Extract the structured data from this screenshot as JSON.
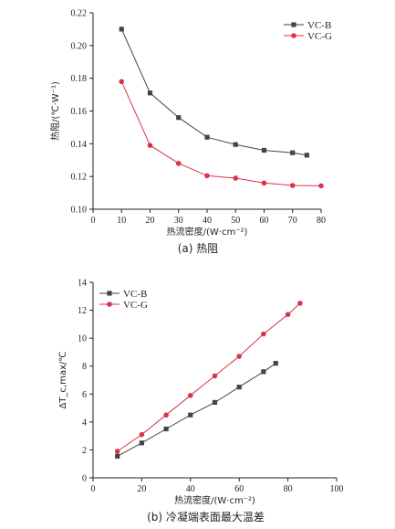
{
  "chart_data": [
    {
      "type": "line",
      "caption": "(a)  热阻",
      "xlabel": "热流密度/(W·cm⁻²)",
      "ylabel": "热阻/(℃·W⁻¹)",
      "xlim": [
        0,
        80
      ],
      "ylim": [
        0.1,
        0.22
      ],
      "xticks": [
        0,
        10,
        20,
        30,
        40,
        50,
        60,
        70,
        80
      ],
      "xtick_labels": [
        "0",
        "10",
        "20",
        "30",
        "40",
        "50",
        "60",
        "70",
        "80"
      ],
      "yticks": [
        0.1,
        0.12,
        0.14,
        0.16,
        0.18,
        0.2,
        0.22
      ],
      "ytick_labels": [
        "0.10",
        "0.12",
        "0.14",
        "0.16",
        "0.18",
        "0.20",
        "0.22"
      ],
      "legend_position": "top-right",
      "grid": false,
      "series": [
        {
          "name": "VC-B",
          "color": "#444444",
          "marker": "square",
          "x": [
            10,
            20,
            30,
            40,
            50,
            60,
            70,
            75
          ],
          "y": [
            0.21,
            0.171,
            0.156,
            0.144,
            0.1395,
            0.136,
            0.1345,
            0.133
          ]
        },
        {
          "name": "VC-G",
          "color": "#d9334a",
          "marker": "circle",
          "x": [
            10,
            20,
            30,
            40,
            50,
            60,
            70,
            80
          ],
          "y": [
            0.178,
            0.139,
            0.128,
            0.1205,
            0.119,
            0.116,
            0.1145,
            0.1143
          ]
        }
      ]
    },
    {
      "type": "line",
      "caption": "(b)  冷凝端表面最大温差",
      "xlabel": "热流密度/(W·cm⁻²)",
      "ylabel": "ΔT_c,max/℃",
      "xlim": [
        0,
        100
      ],
      "ylim": [
        0,
        14
      ],
      "xticks": [
        0,
        20,
        40,
        60,
        80,
        100
      ],
      "xtick_labels": [
        "0",
        "20",
        "40",
        "60",
        "80",
        "100"
      ],
      "yticks": [
        0,
        2,
        4,
        6,
        8,
        10,
        12,
        14
      ],
      "ytick_labels": [
        "0",
        "2",
        "4",
        "6",
        "8",
        "10",
        "12",
        "14"
      ],
      "legend_position": "top-left",
      "grid": false,
      "series": [
        {
          "name": "VC-B",
          "color": "#444444",
          "marker": "square",
          "x": [
            10,
            20,
            30,
            40,
            50,
            60,
            70,
            75
          ],
          "y": [
            1.55,
            2.5,
            3.5,
            4.5,
            5.4,
            6.5,
            7.6,
            8.2
          ]
        },
        {
          "name": "VC-G",
          "color": "#d9334a",
          "marker": "circle",
          "x": [
            10,
            20,
            30,
            40,
            50,
            60,
            70,
            80,
            85
          ],
          "y": [
            1.9,
            3.1,
            4.5,
            5.9,
            7.3,
            8.7,
            10.3,
            11.7,
            12.5
          ]
        }
      ]
    }
  ]
}
